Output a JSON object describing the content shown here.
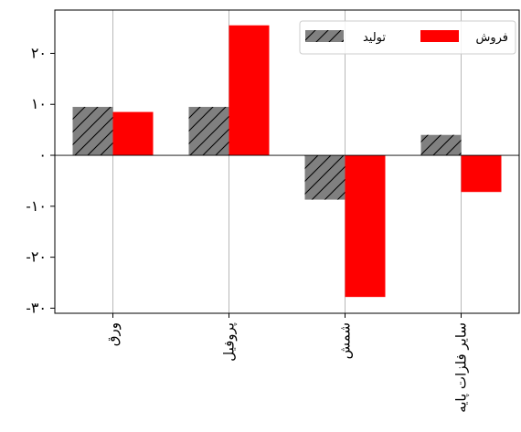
{
  "chart_data": {
    "type": "bar",
    "categories": [
      "ورق",
      "پروفیل",
      "شمش",
      "سایر فلزات پایه"
    ],
    "series": [
      {
        "name": "تولید",
        "values": [
          9.5,
          9.5,
          -8.7,
          4.0
        ],
        "color": "#808080",
        "hatch": "diagonal"
      },
      {
        "name": "فروش",
        "values": [
          8.5,
          25.5,
          -27.8,
          -7.2
        ],
        "color": "#ff0000",
        "hatch": "none"
      }
    ],
    "ylim": [
      -31,
      28.5
    ],
    "yticks": [
      -30,
      -20,
      -10,
      0,
      10,
      20
    ],
    "ytick_labels": [
      "-۳۰",
      "-۲۰",
      "-۱۰",
      "۰",
      "۱۰",
      "۲۰"
    ],
    "grid": {
      "x": true,
      "y": false
    },
    "legend": "top-right",
    "title": "",
    "xlabel": "",
    "ylabel": ""
  }
}
